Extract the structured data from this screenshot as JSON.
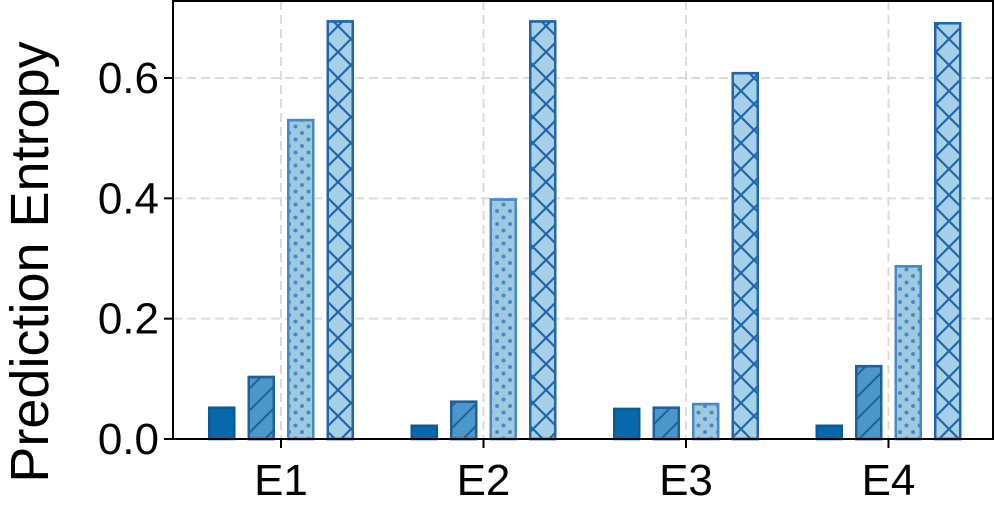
{
  "chart_data": {
    "type": "bar",
    "ylabel": "Prediction Entropy",
    "categories": [
      "E1",
      "E2",
      "E3",
      "E4"
    ],
    "series": [
      {
        "color": "#0868ac",
        "edgecolor": "#0a5a96",
        "hatch": "none",
        "values": [
          0.052,
          0.022,
          0.05,
          0.022
        ]
      },
      {
        "color": "#4a98c9",
        "edgecolor": "#1f5fa0",
        "hatch": "diagonal",
        "values": [
          0.103,
          0.062,
          0.052,
          0.121
        ]
      },
      {
        "color": "#9ecae1",
        "edgecolor": "#4a88c4",
        "hatch": "dots",
        "values": [
          0.53,
          0.398,
          0.058,
          0.287
        ]
      },
      {
        "color": "#a6cfe8",
        "edgecolor": "#2166ac",
        "hatch": "cross",
        "values": [
          0.694,
          0.694,
          0.608,
          0.691
        ]
      }
    ],
    "ylim": [
      0,
      0.728
    ],
    "yticks": [
      {
        "value": 0,
        "label": "0.0"
      },
      0.2,
      0.4,
      0.6
    ],
    "grid": true
  }
}
